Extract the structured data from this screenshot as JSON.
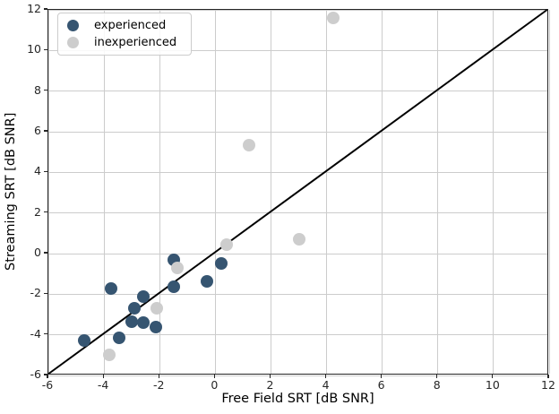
{
  "chart_data": {
    "type": "scatter",
    "title": "",
    "xlabel": "Free Field SRT [dB SNR]",
    "ylabel": "Streaming SRT [dB SNR]",
    "xlim": [
      -6,
      12
    ],
    "ylim": [
      -6,
      12
    ],
    "xticks": [
      -6,
      -4,
      -2,
      0,
      2,
      4,
      6,
      8,
      10,
      12
    ],
    "yticks": [
      -6,
      -4,
      -2,
      0,
      2,
      4,
      6,
      8,
      10,
      12
    ],
    "grid": true,
    "grid_color": "#cccccc",
    "spine_color": "#262626",
    "legend_position": "upper-left",
    "marker_diameter_px": 14,
    "identity_line": {
      "x1": -6,
      "y1": -6,
      "x2": 12,
      "y2": 12,
      "color": "#000000",
      "width": 2
    },
    "series": [
      {
        "name": "experienced",
        "color": "#365571",
        "points": [
          [
            -4.7,
            -4.3
          ],
          [
            -3.75,
            -1.7
          ],
          [
            -3.45,
            -4.15
          ],
          [
            -3.0,
            -3.35
          ],
          [
            -2.9,
            -2.7
          ],
          [
            -2.6,
            -3.4
          ],
          [
            -2.6,
            -2.1
          ],
          [
            -2.15,
            -3.6
          ],
          [
            -1.5,
            -0.3
          ],
          [
            -1.5,
            -1.65
          ],
          [
            -0.3,
            -1.35
          ],
          [
            0.2,
            -0.5
          ]
        ]
      },
      {
        "name": "inexperienced",
        "color": "#cdcdcd",
        "points": [
          [
            -3.8,
            -5.0
          ],
          [
            -2.1,
            -2.7
          ],
          [
            -1.35,
            -0.7
          ],
          [
            0.4,
            0.45
          ],
          [
            1.2,
            5.35
          ],
          [
            3.0,
            0.7
          ],
          [
            4.25,
            11.6
          ]
        ]
      }
    ]
  }
}
